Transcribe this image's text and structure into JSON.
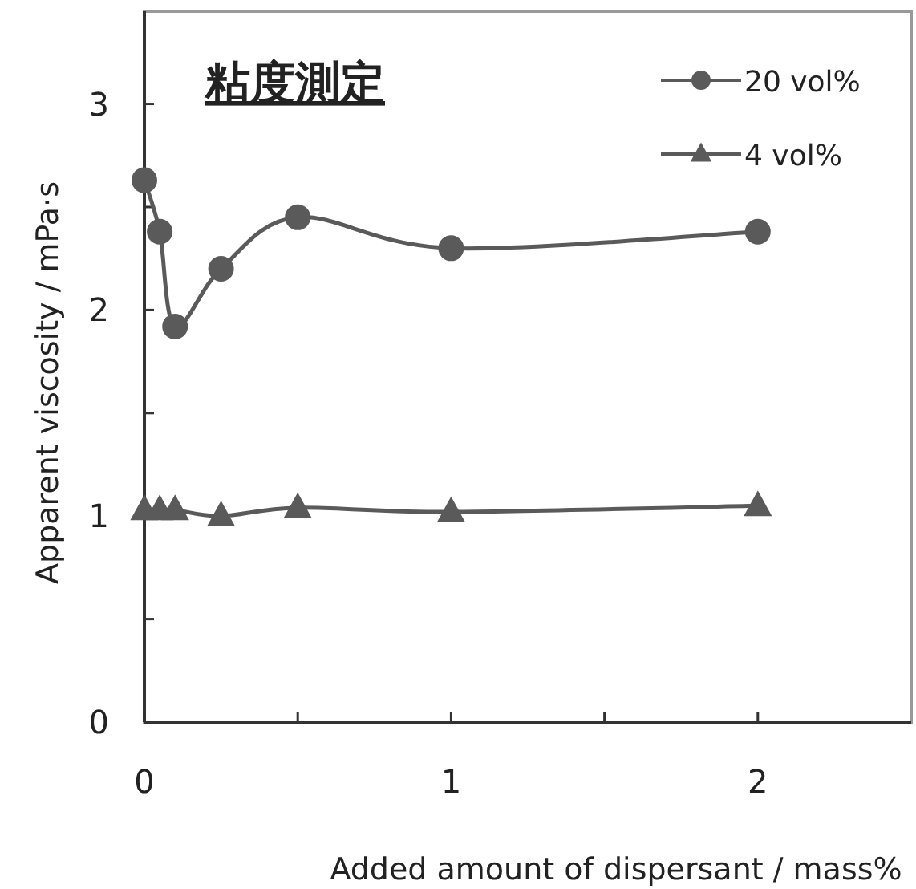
{
  "chart_data": {
    "type": "line",
    "title": "粘度測定",
    "xlabel": "Added amount of dispersant / mass%",
    "ylabel": "Apparent viscosity / mPa·s",
    "x": [
      0,
      0.05,
      0.1,
      0.25,
      0.5,
      1,
      2
    ],
    "series": [
      {
        "name": "20 vol%",
        "color": "#5a5a5a",
        "marker": "circle",
        "values": [
          2.63,
          2.38,
          1.92,
          2.2,
          2.45,
          2.3,
          2.38
        ]
      },
      {
        "name": "4 vol%",
        "color": "#5a5a5a",
        "marker": "triangle",
        "values": [
          1.03,
          1.03,
          1.03,
          1.0,
          1.04,
          1.02,
          1.05
        ]
      }
    ],
    "xlim": [
      0,
      2.5
    ],
    "xticks": [
      0,
      {
        "value": 0.5,
        "label": null
      },
      1,
      {
        "value": 1.5,
        "label": null
      },
      2
    ],
    "ylim": [
      0,
      3.45
    ],
    "yticks": [
      0,
      {
        "value": 0.5,
        "label": null
      },
      1,
      {
        "value": 1.5,
        "label": null
      },
      2,
      {
        "value": 2.5,
        "label": null
      },
      3
    ],
    "grid": false,
    "legend": "top right",
    "line_style": "solid"
  }
}
